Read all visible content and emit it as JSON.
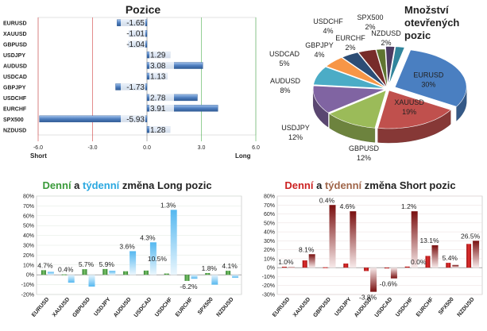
{
  "colors": {
    "long_green": "#3a9a3a",
    "week_blue": "#2aa8e0",
    "short_red": "#cc2222",
    "week_brown": "#a0664a",
    "long_bar_blue": "#4f7fbf",
    "grid": "#d8d8d8",
    "axis_green": "#4caf50",
    "axis_red": "#d04040"
  },
  "chart_data": [
    {
      "type": "bar",
      "orientation": "horizontal",
      "title": "Pozice",
      "categories": [
        "EURUSD",
        "XAUUSD",
        "GBPUSD",
        "USDJPY",
        "AUDUSD",
        "USDCAD",
        "GBPJPY",
        "USDCHF",
        "EURCHF",
        "SPX500",
        "NZDUSD"
      ],
      "values": [
        -1.65,
        -1.01,
        -1.04,
        1.29,
        3.08,
        1.13,
        -1.73,
        2.78,
        3.91,
        -5.93,
        1.28
      ],
      "value_labels": [
        "-1.65",
        "-1.01",
        "-1.04",
        "1.29",
        "3.08",
        "1.13",
        "-1.73",
        "2.78",
        "3.91",
        "-5.93",
        "1.28"
      ],
      "xlim": [
        -6,
        6
      ],
      "xticks": [
        "-6.0",
        "-3.0",
        "0.0",
        "3.0",
        "6.0"
      ],
      "xtick_values": [
        -6,
        -3,
        0,
        3,
        6
      ],
      "left_label": "Short",
      "right_label": "Long"
    },
    {
      "type": "pie",
      "title_lines": [
        "Množství",
        "otevřených",
        "pozic"
      ],
      "slices": [
        {
          "name": "EURUSD",
          "value": 30
        },
        {
          "name": "XAUUSD",
          "value": 19
        },
        {
          "name": "GBPUSD",
          "value": 12
        },
        {
          "name": "USDJPY",
          "value": 12
        },
        {
          "name": "AUDUSD",
          "value": 8
        },
        {
          "name": "USDCAD",
          "value": 5
        },
        {
          "name": "GBPJPY",
          "value": 4
        },
        {
          "name": "USDCHF",
          "value": 4
        },
        {
          "name": "EURCHF",
          "value": 2
        },
        {
          "name": "SPX500",
          "value": 2
        },
        {
          "name": "NZDUSD",
          "value": 2
        }
      ],
      "slice_colors": [
        "#4a7fc1",
        "#c0504d",
        "#9bbb59",
        "#8064a2",
        "#4bacc6",
        "#f79646",
        "#2c4d75",
        "#772c2a",
        "#5f7530",
        "#4d3b62",
        "#31859c"
      ],
      "value_suffix": "%"
    },
    {
      "type": "bar",
      "title_parts": [
        {
          "text": "Denní",
          "color": "#3a9a3a"
        },
        {
          "text": " a ",
          "color": "#222222"
        },
        {
          "text": "týdenní",
          "color": "#2aa8e0"
        },
        {
          "text": " změna Long pozic",
          "color": "#222222"
        }
      ],
      "categories": [
        "EURUSD",
        "XAUUSD",
        "GBPUSD",
        "USDJPY",
        "AUDUSD",
        "USDCAD",
        "USDCHF",
        "EURCHF",
        "SPX500",
        "NZDUSD"
      ],
      "series": [
        {
          "name": "Denní",
          "values": [
            4.7,
            0.4,
            5.7,
            5.9,
            3.6,
            4.3,
            1.3,
            -6.2,
            1.8,
            4.1
          ]
        },
        {
          "name": "týdenní",
          "values": [
            3,
            -8,
            -12,
            4,
            24,
            33,
            66,
            -4,
            -10,
            -3
          ]
        }
      ],
      "value_labels": [
        "4.7%",
        "0.4%",
        "5.7%",
        "5.9%",
        "3.6%",
        "4.3%",
        "1.3%",
        "-6.2%",
        "1.8%",
        "4.1%"
      ],
      "extra_labels": [
        {
          "text": "10.5%",
          "category": "USDCAD",
          "value": 10.5
        }
      ],
      "ylim": [
        -20,
        80
      ],
      "yticks": [
        "-20%",
        "-10%",
        "0%",
        "10%",
        "20%",
        "30%",
        "40%",
        "50%",
        "60%",
        "70%",
        "80%"
      ]
    },
    {
      "type": "bar",
      "title_parts": [
        {
          "text": "Denní",
          "color": "#cc2222"
        },
        {
          "text": " a ",
          "color": "#222222"
        },
        {
          "text": "týdenní",
          "color": "#a0664a"
        },
        {
          "text": " změna Short pozic",
          "color": "#222222"
        }
      ],
      "categories": [
        "EURUSD",
        "XAUUSD",
        "GBPUSD",
        "USDJPY",
        "AUDUSD",
        "USDCAD",
        "USDCHF",
        "EURCHF",
        "SPX500",
        "NZDUSD"
      ],
      "series": [
        {
          "name": "Denní",
          "values": [
            1.0,
            8.1,
            0.4,
            4.6,
            -3.8,
            -0.6,
            1.2,
            13.1,
            5.4,
            26.5
          ]
        },
        {
          "name": "týdenní",
          "values": [
            0.5,
            15,
            70,
            63,
            -27,
            -12,
            63,
            25,
            3,
            30
          ]
        }
      ],
      "value_labels": [
        "1.0%",
        "8.1%",
        "0.4%",
        "4.6%",
        "-3.8%",
        "-0.6%",
        "1.2%",
        "13.1%",
        "5.4%",
        "26.5%"
      ],
      "extra_labels": [
        {
          "text": "0.0%",
          "category": "USDCHF",
          "value": 0
        }
      ],
      "ylim": [
        -30,
        80
      ],
      "yticks": [
        "-30%",
        "-20%",
        "-10%",
        "0%",
        "10%",
        "20%",
        "30%",
        "40%",
        "50%",
        "60%",
        "70%",
        "80%"
      ]
    }
  ]
}
